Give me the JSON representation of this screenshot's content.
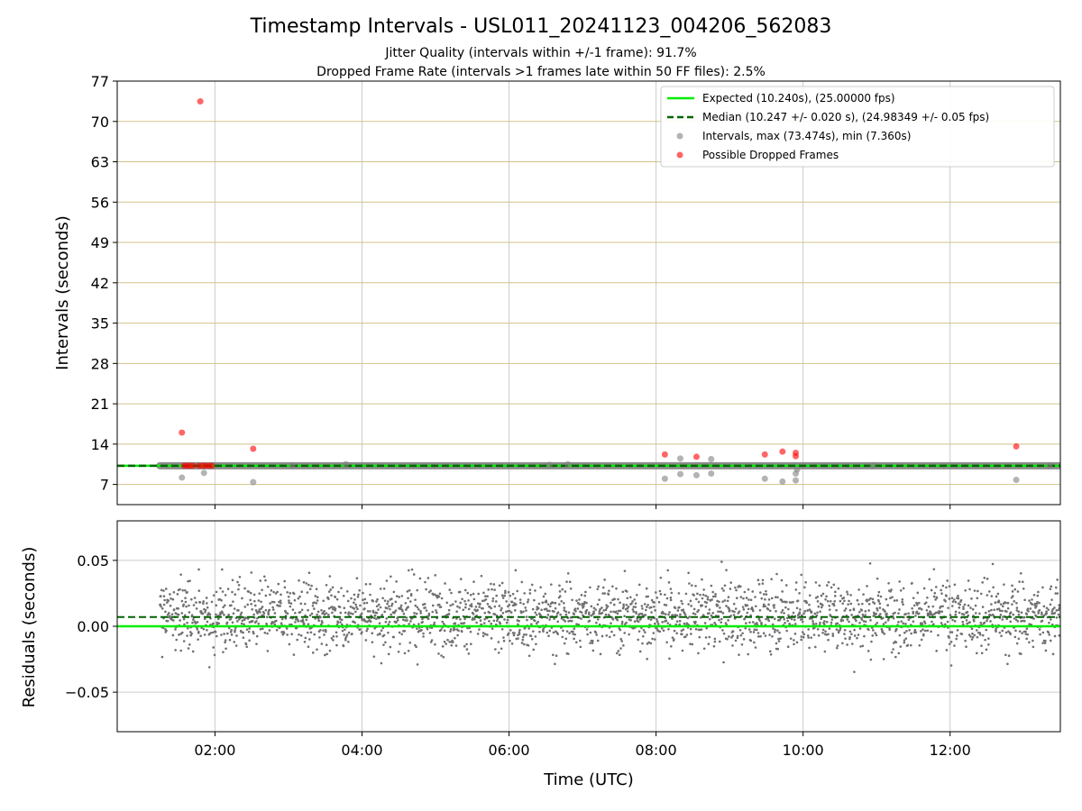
{
  "chart_data": {
    "type": "scatter",
    "title": "Timestamp Intervals - USL011_20241123_004206_562083",
    "subtitle_lines": [
      "Jitter Quality (intervals within +/-1 frame): 91.7%",
      "Dropped Frame Rate (intervals >1 frames late within 50 FF files): 2.5%"
    ],
    "xlabel": "Time (UTC)",
    "x_tick_labels": [
      "02:00",
      "04:00",
      "06:00",
      "08:00",
      "10:00",
      "12:00"
    ],
    "x_tick_hours": [
      2,
      4,
      6,
      8,
      10,
      12
    ],
    "xlim_hours": [
      0.67,
      13.5
    ],
    "top_panel": {
      "ylabel": "Intervals (seconds)",
      "ylim": [
        3.5,
        77
      ],
      "y_ticks": [
        7,
        14,
        21,
        28,
        35,
        42,
        49,
        56,
        63,
        70,
        77
      ],
      "y_tick_labels": [
        "7",
        "14",
        "21",
        "28",
        "35",
        "42",
        "49",
        "56",
        "63",
        "70",
        "77"
      ],
      "expected_interval": 10.24,
      "median_interval": 10.247,
      "legend": [
        "Expected (10.240s), (25.00000 fps)",
        "Median (10.247 +/- 0.020 s), (24.98349 +/- 0.05 fps)",
        "Intervals, max (73.474s), min (7.360s)",
        "Possible Dropped Frames"
      ],
      "intervals_outliers": [
        {
          "x": 1.55,
          "y": 8.2
        },
        {
          "x": 1.85,
          "y": 9.0
        },
        {
          "x": 2.52,
          "y": 7.4
        },
        {
          "x": 3.05,
          "y": 10.3
        },
        {
          "x": 3.78,
          "y": 10.5
        },
        {
          "x": 6.55,
          "y": 10.4
        },
        {
          "x": 6.8,
          "y": 10.5
        },
        {
          "x": 8.12,
          "y": 8.0
        },
        {
          "x": 8.33,
          "y": 11.5
        },
        {
          "x": 8.33,
          "y": 8.8
        },
        {
          "x": 8.55,
          "y": 8.6
        },
        {
          "x": 8.75,
          "y": 11.4
        },
        {
          "x": 8.75,
          "y": 8.9
        },
        {
          "x": 9.48,
          "y": 8.0
        },
        {
          "x": 9.72,
          "y": 7.5
        },
        {
          "x": 9.9,
          "y": 7.7
        },
        {
          "x": 9.9,
          "y": 8.9
        },
        {
          "x": 9.92,
          "y": 9.6
        },
        {
          "x": 10.95,
          "y": 10.2
        },
        {
          "x": 12.9,
          "y": 7.8
        },
        {
          "x": 13.35,
          "y": 10.3
        }
      ],
      "dropped_frames": [
        {
          "x": 1.8,
          "y": 73.474
        },
        {
          "x": 1.55,
          "y": 16.0
        },
        {
          "x": 2.52,
          "y": 13.2
        },
        {
          "x": 1.58,
          "y": 10.24
        },
        {
          "x": 1.62,
          "y": 10.24
        },
        {
          "x": 1.66,
          "y": 10.24
        },
        {
          "x": 1.7,
          "y": 10.24
        },
        {
          "x": 1.78,
          "y": 10.24
        },
        {
          "x": 1.83,
          "y": 10.24
        },
        {
          "x": 1.87,
          "y": 10.24
        },
        {
          "x": 1.92,
          "y": 10.24
        },
        {
          "x": 1.96,
          "y": 10.24
        },
        {
          "x": 8.12,
          "y": 12.2
        },
        {
          "x": 8.55,
          "y": 11.8
        },
        {
          "x": 9.48,
          "y": 12.2
        },
        {
          "x": 9.72,
          "y": 12.7
        },
        {
          "x": 9.9,
          "y": 12.5
        },
        {
          "x": 9.9,
          "y": 11.9
        },
        {
          "x": 12.9,
          "y": 13.6
        }
      ],
      "interval_band_x_range": [
        1.25,
        13.5
      ]
    },
    "bottom_panel": {
      "ylabel": "Residuals (seconds)",
      "ylim": [
        -0.08,
        0.08
      ],
      "y_ticks": [
        0.05,
        0.0,
        -0.05
      ],
      "y_tick_labels": [
        "0.05",
        "0.00",
        "−0.05"
      ],
      "expected_residual": 0.0,
      "median_residual": 0.007,
      "residual_x_range": [
        1.25,
        13.5
      ],
      "residual_center": 0.008,
      "residual_spread": 0.02
    },
    "grid": true,
    "legend_placement": "top-right",
    "colors": {
      "expected": "#00ee00",
      "median": "#006400",
      "intervals": "#808080",
      "dropped": "#ff0000",
      "hgrid_top": "#d2c28a",
      "grid": "#cccccc",
      "residual_points": "#707070"
    }
  }
}
